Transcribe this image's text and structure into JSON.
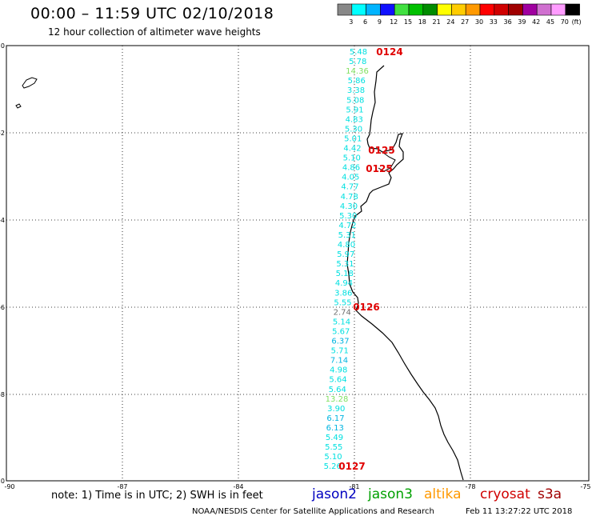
{
  "header": {
    "title": "00:00 – 11:59 UTC 02/10/2018",
    "subtitle": "12 hour collection of altimeter wave heights"
  },
  "colorbar": {
    "unit": "(ft)",
    "bins": [
      {
        "color": "#888888",
        "label": "3"
      },
      {
        "color": "#00ffff",
        "label": "6"
      },
      {
        "color": "#00b4ff",
        "label": "9"
      },
      {
        "color": "#1010ff",
        "label": "12"
      },
      {
        "color": "#40e040",
        "label": "15"
      },
      {
        "color": "#00c000",
        "label": "18"
      },
      {
        "color": "#008c00",
        "label": "21"
      },
      {
        "color": "#ffff00",
        "label": "24"
      },
      {
        "color": "#ffcc00",
        "label": "27"
      },
      {
        "color": "#ff9900",
        "label": "30"
      },
      {
        "color": "#ff0000",
        "label": "33"
      },
      {
        "color": "#d00000",
        "label": "36"
      },
      {
        "color": "#a00000",
        "label": "39"
      },
      {
        "color": "#a000a0",
        "label": "42"
      },
      {
        "color": "#d070d0",
        "label": "45"
      },
      {
        "color": "#ff9cff",
        "label": "70"
      },
      {
        "color": "#000000",
        "label": ""
      }
    ]
  },
  "axes": {
    "lon_ticks": [
      "-90",
      "-87",
      "-84",
      "-81",
      "-78",
      "-75"
    ],
    "lat_ticks": [
      "0",
      "-2",
      "-4",
      "-6",
      "-8",
      "-10"
    ]
  },
  "wave_heights": [
    {
      "value": "5.48",
      "color": "#00e0e0"
    },
    {
      "value": "5.78",
      "color": "#00e0e0"
    },
    {
      "value": "14.36",
      "color": "#80e060"
    },
    {
      "value": "5.86",
      "color": "#00e0e0"
    },
    {
      "value": "3.38",
      "color": "#00e0e0"
    },
    {
      "value": "5.08",
      "color": "#00e0e0"
    },
    {
      "value": "5.91",
      "color": "#00e0e0"
    },
    {
      "value": "4.83",
      "color": "#00e0e0"
    },
    {
      "value": "5.30",
      "color": "#00e0e0"
    },
    {
      "value": "5.01",
      "color": "#00e0e0"
    },
    {
      "value": "4.42",
      "color": "#00e0e0"
    },
    {
      "value": "5.10",
      "color": "#00e0e0"
    },
    {
      "value": "4.86",
      "color": "#00e0e0"
    },
    {
      "value": "4.05",
      "color": "#00e0e0"
    },
    {
      "value": "4.77",
      "color": "#00e0e0"
    },
    {
      "value": "4.78",
      "color": "#00e0e0"
    },
    {
      "value": "4.30",
      "color": "#00e0e0"
    },
    {
      "value": "5.30",
      "color": "#00e0e0"
    },
    {
      "value": "4.72",
      "color": "#00e0e0"
    },
    {
      "value": "5.31",
      "color": "#00e0e0"
    },
    {
      "value": "4.80",
      "color": "#00e0e0"
    },
    {
      "value": "5.97",
      "color": "#00e0e0"
    },
    {
      "value": "5.31",
      "color": "#00e0e0"
    },
    {
      "value": "5.18",
      "color": "#00e0e0"
    },
    {
      "value": "4.94",
      "color": "#00e0e0"
    },
    {
      "value": "3.86",
      "color": "#00e0e0"
    },
    {
      "value": "5.55",
      "color": "#00e0e0"
    },
    {
      "value": "2.74",
      "color": "#707070"
    },
    {
      "value": "5.14",
      "color": "#00e0e0"
    },
    {
      "value": "5.67",
      "color": "#00e0e0"
    },
    {
      "value": "6.37",
      "color": "#00b4e0"
    },
    {
      "value": "5.71",
      "color": "#00e0e0"
    },
    {
      "value": "7.14",
      "color": "#00b4e0"
    },
    {
      "value": "4.98",
      "color": "#00e0e0"
    },
    {
      "value": "5.64",
      "color": "#00e0e0"
    },
    {
      "value": "5.64",
      "color": "#00e0e0"
    },
    {
      "value": "13.28",
      "color": "#80e060"
    },
    {
      "value": "3.90",
      "color": "#00e0e0"
    },
    {
      "value": "6.17",
      "color": "#00b4e0"
    },
    {
      "value": "6.13",
      "color": "#00b4e0"
    },
    {
      "value": "5.49",
      "color": "#00e0e0"
    },
    {
      "value": "5.55",
      "color": "#00e0e0"
    },
    {
      "value": "5.10",
      "color": "#00e0e0"
    },
    {
      "value": "5.26",
      "color": "#00e0e0"
    }
  ],
  "cycle_labels": [
    "0124",
    "0125",
    "0125",
    "0126",
    "0127"
  ],
  "footer": {
    "note": "note:  1) Time is in UTC;  2) SWH is in feet",
    "satellites": [
      {
        "name": "jason2",
        "color": "#0000c0"
      },
      {
        "name": "jason3",
        "color": "#00a000"
      },
      {
        "name": "altika",
        "color": "#ff9900"
      },
      {
        "name": "cryosat",
        "color": "#d00000"
      },
      {
        "name": "s3a",
        "color": "#a00000"
      }
    ],
    "credit": "NOAA/NESDIS Center for Satellite Applications and Research",
    "timestamp": "Feb 11 13:27:22 UTC 2018"
  }
}
